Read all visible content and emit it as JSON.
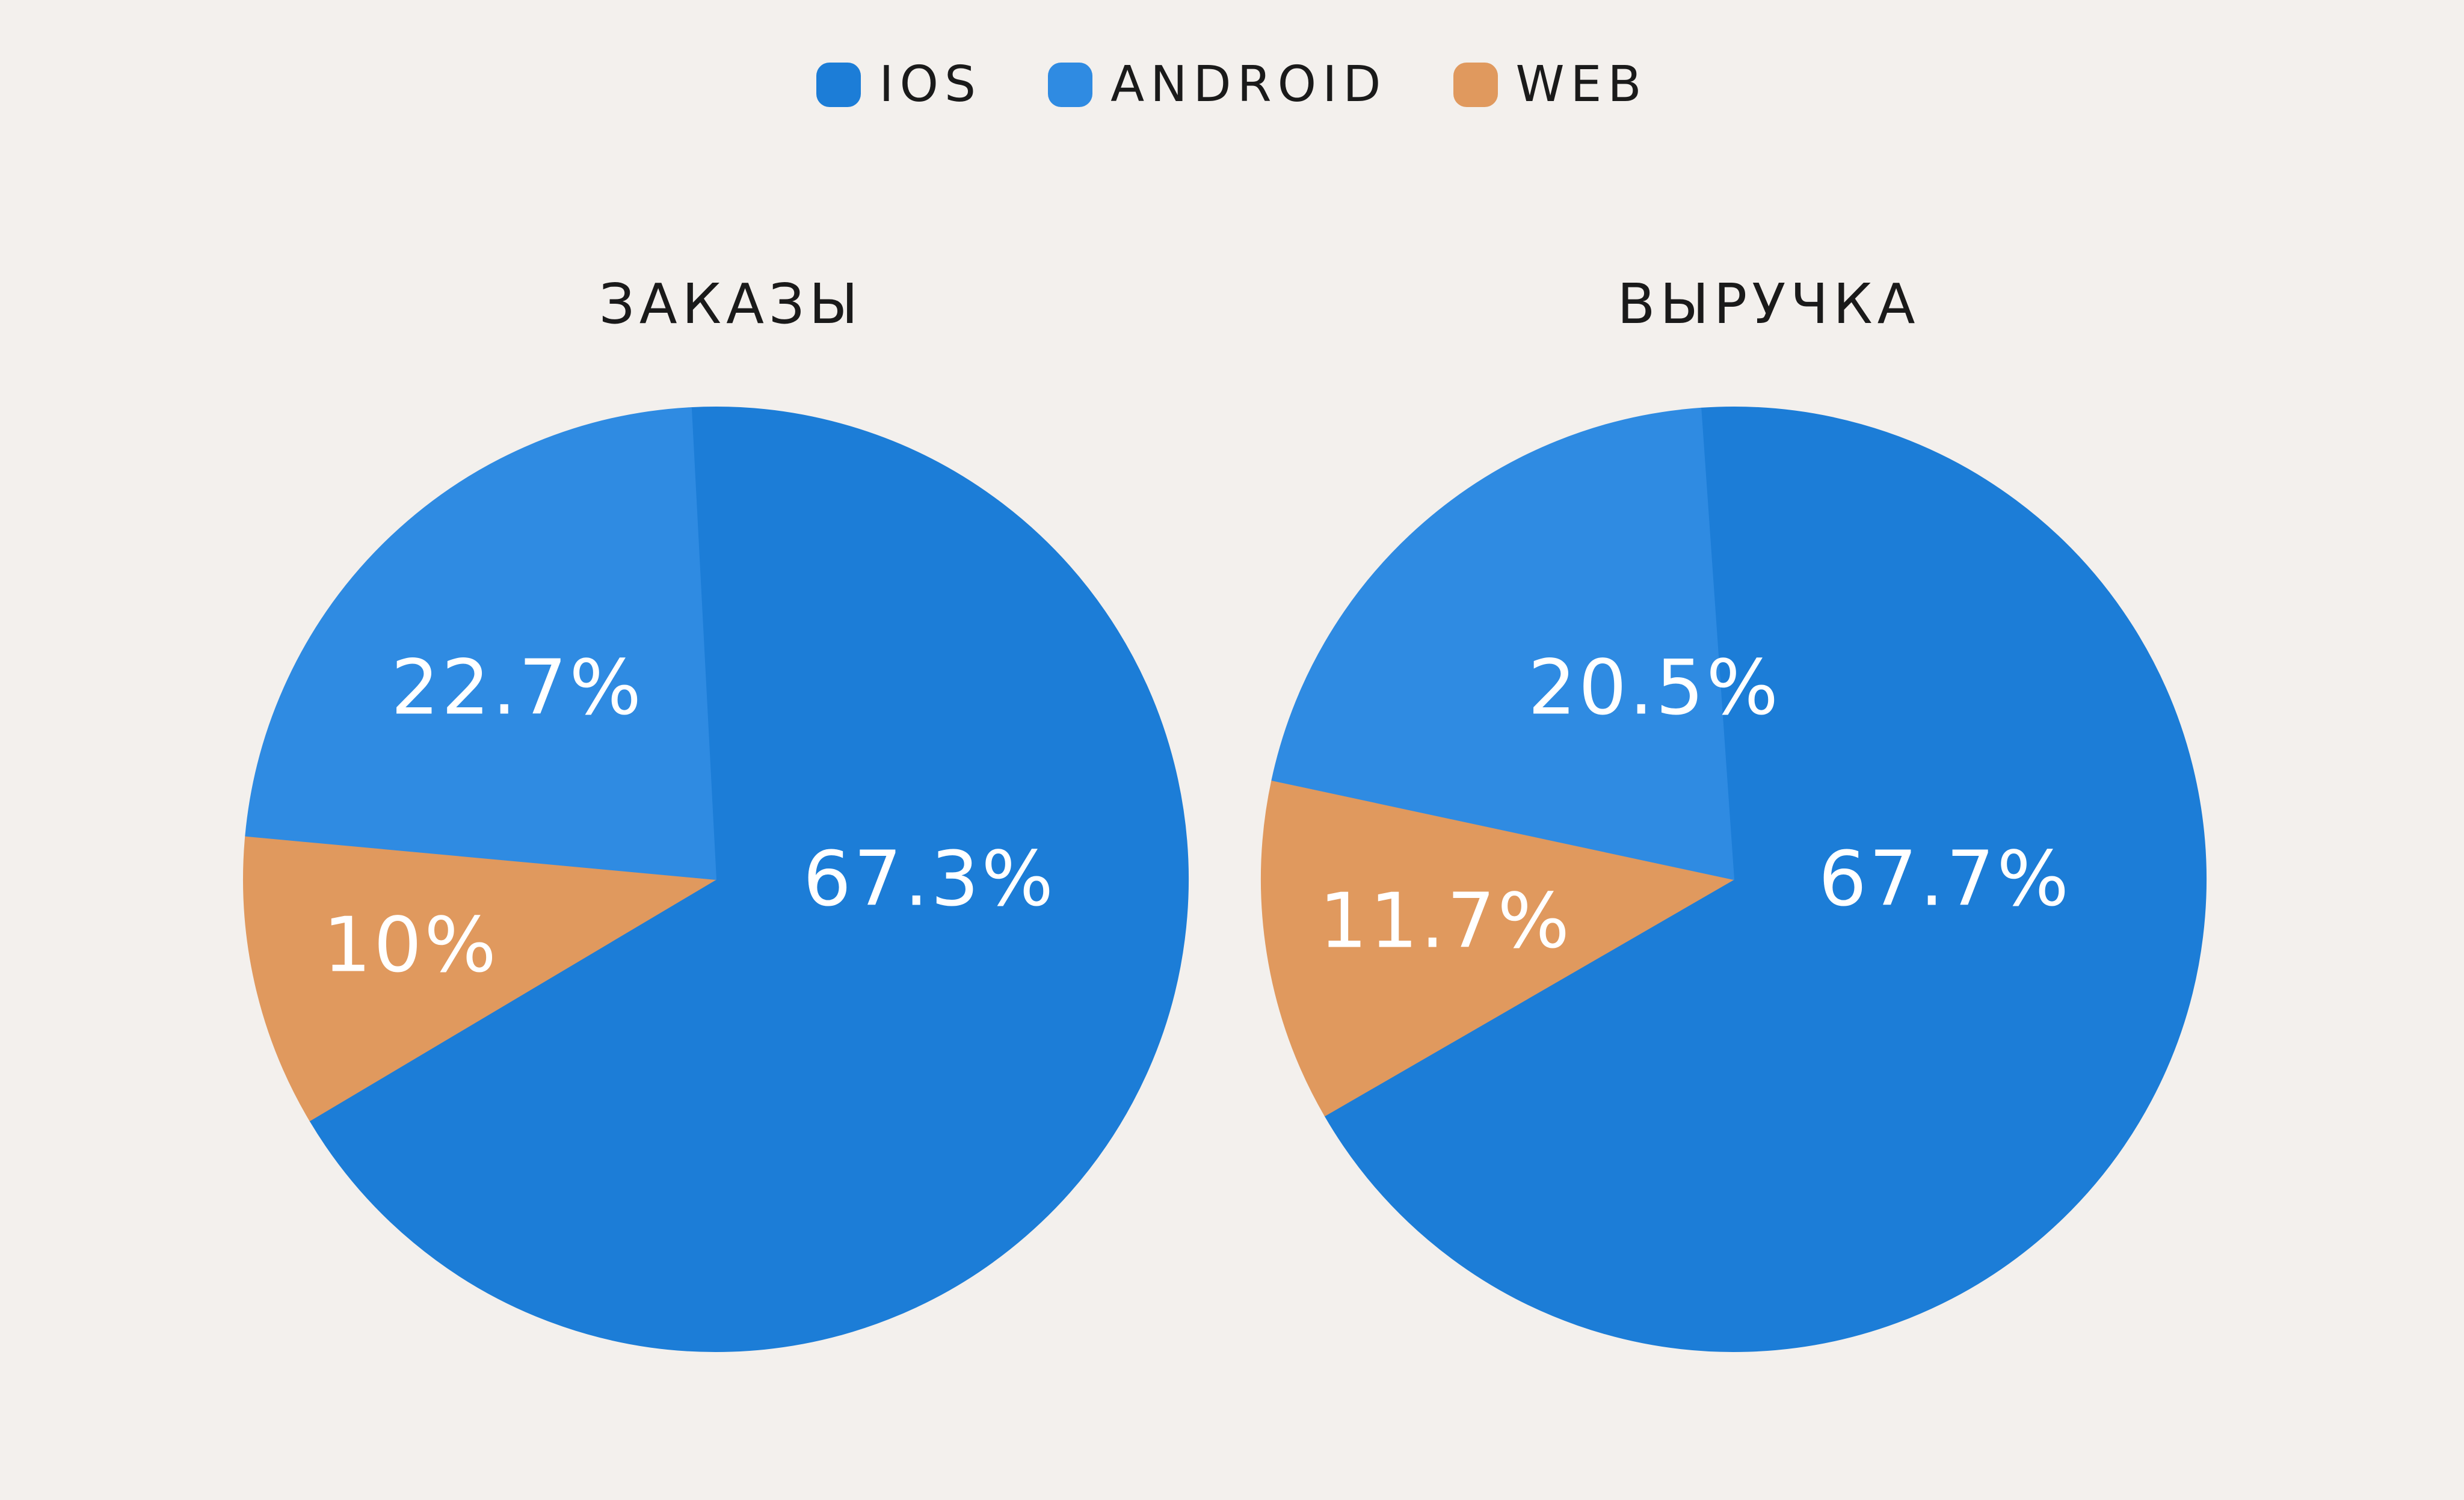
{
  "legend": [
    {
      "label": "IOS",
      "color": "#1c7dd7"
    },
    {
      "label": "ANDROID",
      "color": "#2f8be2"
    },
    {
      "label": "WEB",
      "color": "#e0995e"
    }
  ],
  "chart_data": [
    {
      "type": "pie",
      "title": "ЗАКАЗЫ",
      "slices": [
        {
          "name": "IOS",
          "value": 67.3,
          "label": "67.3%",
          "color": "#1c7dd7"
        },
        {
          "name": "WEB",
          "value": 10,
          "label": "10%",
          "color": "#e0995e"
        },
        {
          "name": "ANDROID",
          "value": 22.7,
          "label": "22.7%",
          "color": "#2f8be2"
        }
      ]
    },
    {
      "type": "pie",
      "title": "ВЫРУЧКА",
      "slices": [
        {
          "name": "IOS",
          "value": 67.7,
          "label": "67.7%",
          "color": "#1c7dd7"
        },
        {
          "name": "WEB",
          "value": 11.7,
          "label": "11.7%",
          "color": "#e0995e"
        },
        {
          "name": "ANDROID",
          "value": 20.5,
          "label": "20.5%",
          "color": "#2f8be2"
        }
      ]
    }
  ]
}
